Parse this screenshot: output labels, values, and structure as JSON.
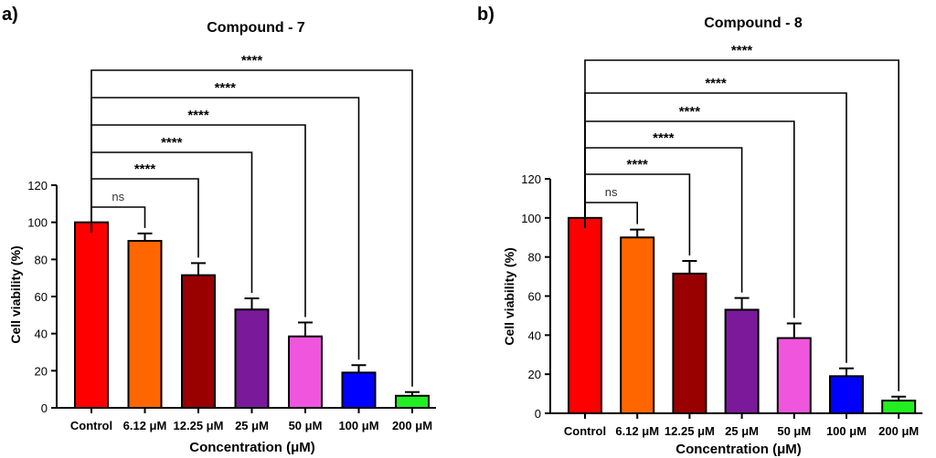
{
  "chart_data": [
    {
      "panel_label": "a)",
      "type": "bar",
      "title": "Compound - 7",
      "xlabel": "Concentration (μM)",
      "ylabel": "Cell viability (%)",
      "ylim": [
        0,
        120
      ],
      "yticks": [
        0,
        20,
        40,
        60,
        80,
        100,
        120
      ],
      "categories": [
        "Control",
        "6.12 μM",
        "12.25 μM",
        "25 μM",
        "50 μM",
        "100 μM",
        "200 μM"
      ],
      "values": [
        100,
        90,
        71.5,
        53,
        38.5,
        19,
        6.5
      ],
      "errors": [
        0,
        4,
        6.5,
        6,
        7.5,
        4,
        2
      ],
      "colors": [
        "#ff0000",
        "#ff6600",
        "#990000",
        "#7a1a9a",
        "#f055dd",
        "#0000ff",
        "#22ee22"
      ],
      "significance": [
        {
          "from": "Control",
          "to": "6.12 μM",
          "label": "ns"
        },
        {
          "from": "Control",
          "to": "12.25 μM",
          "label": "****"
        },
        {
          "from": "Control",
          "to": "25 μM",
          "label": "****"
        },
        {
          "from": "Control",
          "to": "50 μM",
          "label": "****"
        },
        {
          "from": "Control",
          "to": "100 μM",
          "label": "****"
        },
        {
          "from": "Control",
          "to": "200 μM",
          "label": "****"
        }
      ]
    },
    {
      "panel_label": "b)",
      "type": "bar",
      "title": "Compound - 8",
      "xlabel": "Concentration (μM)",
      "ylabel": "Cell viability (%)",
      "ylim": [
        0,
        120
      ],
      "yticks": [
        0,
        20,
        40,
        60,
        80,
        100,
        120
      ],
      "categories": [
        "Control",
        "6.12 μM",
        "12.25 μM",
        "25 μM",
        "50 μM",
        "100 μM",
        "200 μM"
      ],
      "values": [
        100,
        90,
        71.5,
        53,
        38.5,
        19,
        6.5
      ],
      "errors": [
        0,
        4,
        6.5,
        6,
        7.5,
        4,
        2
      ],
      "colors": [
        "#ff0000",
        "#ff6600",
        "#990000",
        "#7a1a9a",
        "#f055dd",
        "#0000ff",
        "#22ee22"
      ],
      "significance": [
        {
          "from": "Control",
          "to": "6.12 μM",
          "label": "ns"
        },
        {
          "from": "Control",
          "to": "12.25 μM",
          "label": "****"
        },
        {
          "from": "Control",
          "to": "25 μM",
          "label": "****"
        },
        {
          "from": "Control",
          "to": "50 μM",
          "label": "****"
        },
        {
          "from": "Control",
          "to": "100 μM",
          "label": "****"
        },
        {
          "from": "Control",
          "to": "200 μM",
          "label": "****"
        }
      ]
    }
  ]
}
